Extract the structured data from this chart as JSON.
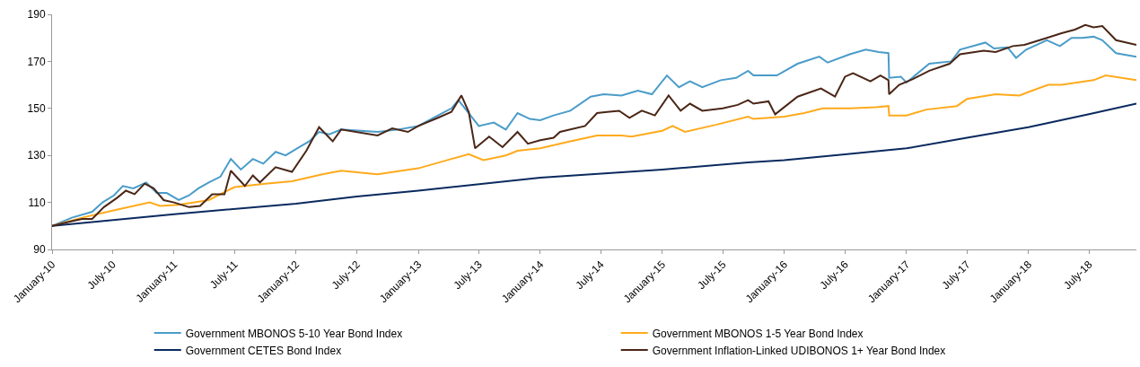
{
  "chart_data": {
    "type": "line",
    "ylim": [
      90,
      190
    ],
    "yticks": [
      90,
      110,
      130,
      150,
      170,
      190
    ],
    "xlim": [
      "2010-01-01",
      "2018-11-20"
    ],
    "xticks": [
      {
        "value": "2010-01-01",
        "label": "January-10"
      },
      {
        "value": "2010-07-01",
        "label": "July-10"
      },
      {
        "value": "2011-01-01",
        "label": "January-11"
      },
      {
        "value": "2011-07-01",
        "label": "July-11"
      },
      {
        "value": "2012-01-01",
        "label": "January-12"
      },
      {
        "value": "2012-07-01",
        "label": "July-12"
      },
      {
        "value": "2013-01-01",
        "label": "January-13"
      },
      {
        "value": "2013-07-01",
        "label": "July-13"
      },
      {
        "value": "2014-01-01",
        "label": "January-14"
      },
      {
        "value": "2014-07-01",
        "label": "July-14"
      },
      {
        "value": "2015-01-01",
        "label": "January-15"
      },
      {
        "value": "2015-07-01",
        "label": "July-15"
      },
      {
        "value": "2016-01-01",
        "label": "January-16"
      },
      {
        "value": "2016-07-01",
        "label": "July-16"
      },
      {
        "value": "2017-01-01",
        "label": "January-17"
      },
      {
        "value": "2017-07-01",
        "label": "July-17"
      },
      {
        "value": "2018-01-01",
        "label": "January-18"
      },
      {
        "value": "2018-07-01",
        "label": "July-18"
      }
    ],
    "grid": false,
    "legend": "bottom",
    "marker": "none",
    "line_style": "solid",
    "series": [
      {
        "name": "Government MBONOS 5-10 Year Bond Index",
        "color": "#4a9cc9",
        "x": [
          "2010-01-01",
          "2010-03-01",
          "2010-05-01",
          "2010-06-01",
          "2010-07-05",
          "2010-08-01",
          "2010-09-01",
          "2010-10-10",
          "2010-11-10",
          "2010-12-10",
          "2011-01-15",
          "2011-02-15",
          "2011-03-15",
          "2011-04-15",
          "2011-05-20",
          "2011-06-20",
          "2011-07-20",
          "2011-08-25",
          "2011-09-25",
          "2011-11-01",
          "2011-12-01",
          "2012-01-10",
          "2012-02-10",
          "2012-03-10",
          "2012-04-10",
          "2012-05-15",
          "2012-09-01",
          "2012-11-01",
          "2013-01-01",
          "2013-03-01",
          "2013-04-10",
          "2013-05-01",
          "2013-06-01",
          "2013-07-01",
          "2013-08-15",
          "2013-09-20",
          "2013-10-25",
          "2013-12-01",
          "2014-01-01",
          "2014-02-10",
          "2014-04-01",
          "2014-06-01",
          "2014-07-10",
          "2014-09-01",
          "2014-10-20",
          "2014-12-01",
          "2015-01-15",
          "2015-02-20",
          "2015-03-25",
          "2015-05-01",
          "2015-06-25",
          "2015-08-10",
          "2015-09-15",
          "2015-10-01",
          "2015-12-10",
          "2016-02-10",
          "2016-04-15",
          "2016-05-10",
          "2016-07-15",
          "2016-09-01",
          "2016-10-10",
          "2016-11-08",
          "2016-11-10",
          "2016-12-15",
          "2017-01-01",
          "2017-03-10",
          "2017-05-15",
          "2017-06-10",
          "2017-08-25",
          "2017-09-20",
          "2017-10-30",
          "2017-11-25",
          "2017-12-25",
          "2018-02-25",
          "2018-04-05",
          "2018-05-10",
          "2018-06-10",
          "2018-07-15",
          "2018-08-10",
          "2018-09-20",
          "2018-11-20"
        ],
        "values": [
          100,
          103.5,
          106,
          110,
          113,
          117,
          116,
          118.5,
          114,
          114,
          111,
          113,
          116,
          118.5,
          121,
          128.5,
          124,
          128.5,
          126.5,
          131.5,
          130,
          133.5,
          136,
          140,
          139,
          141,
          140,
          141,
          142.5,
          147,
          150,
          153.5,
          148,
          142.5,
          144,
          141,
          148,
          145.5,
          145,
          147,
          149,
          155,
          156,
          155.5,
          157.5,
          156,
          164,
          159,
          161.5,
          159,
          162,
          163,
          166,
          164,
          164,
          169,
          172,
          169.5,
          173,
          175,
          174,
          173.5,
          163,
          163.5,
          161,
          169,
          170,
          175,
          178,
          175.5,
          176,
          171.5,
          175,
          179,
          176.5,
          180,
          180,
          180.5,
          179,
          173.5,
          172
        ]
      },
      {
        "name": "Government MBONOS 1-5 Year Bond Index",
        "color": "#ffaa1c",
        "x": [
          "2010-01-01",
          "2010-04-01",
          "2010-07-01",
          "2010-10-20",
          "2010-11-20",
          "2011-01-15",
          "2011-04-15",
          "2011-07-01",
          "2011-10-01",
          "2011-12-20",
          "2012-03-20",
          "2012-05-15",
          "2012-09-01",
          "2013-01-01",
          "2013-04-10",
          "2013-06-01",
          "2013-07-15",
          "2013-09-20",
          "2013-10-25",
          "2014-01-01",
          "2014-04-01",
          "2014-06-20",
          "2014-09-01",
          "2014-10-01",
          "2015-01-01",
          "2015-02-01",
          "2015-03-10",
          "2015-06-10",
          "2015-09-15",
          "2015-10-01",
          "2016-01-01",
          "2016-03-01",
          "2016-04-25",
          "2016-07-15",
          "2016-10-01",
          "2016-11-08",
          "2016-11-10",
          "2017-01-01",
          "2017-03-01",
          "2017-06-01",
          "2017-07-01",
          "2017-09-25",
          "2017-12-05",
          "2018-01-01",
          "2018-03-01",
          "2018-04-10",
          "2018-07-15",
          "2018-08-20",
          "2018-11-20"
        ],
        "values": [
          100,
          103.5,
          106.5,
          110,
          108.5,
          109,
          111,
          116.5,
          118,
          119,
          122,
          123.5,
          122,
          124.5,
          128.5,
          130.5,
          128,
          130,
          132,
          133,
          136,
          138.5,
          138.5,
          138,
          140.5,
          142.5,
          140,
          143,
          146.5,
          145.5,
          146.5,
          148,
          150,
          150,
          150.5,
          151,
          147,
          147,
          149.5,
          151,
          154,
          156,
          155.5,
          157,
          160,
          160,
          162,
          164,
          162
        ]
      },
      {
        "name": "Government CETES Bond Index",
        "color": "#0a2a5e",
        "x": [
          "2010-01-01",
          "2011-01-01",
          "2012-01-01",
          "2012-07-01",
          "2013-01-01",
          "2014-01-01",
          "2015-01-01",
          "2015-09-15",
          "2016-01-01",
          "2016-07-01",
          "2017-01-01",
          "2017-07-01",
          "2018-01-01",
          "2018-07-01",
          "2018-11-20"
        ],
        "values": [
          100,
          105,
          109.5,
          112.5,
          115,
          120.5,
          124,
          127,
          128,
          130.5,
          133,
          137.5,
          142,
          147.5,
          152
        ]
      },
      {
        "name": "Government Inflation-Linked UDIBONOS 1+ Year Bond Index",
        "color": "#4a2616",
        "x": [
          "2010-01-01",
          "2010-03-01",
          "2010-04-01",
          "2010-05-01",
          "2010-06-05",
          "2010-07-15",
          "2010-08-10",
          "2010-09-05",
          "2010-10-05",
          "2010-11-01",
          "2010-12-01",
          "2011-01-01",
          "2011-02-15",
          "2011-03-20",
          "2011-04-25",
          "2011-06-01",
          "2011-06-20",
          "2011-08-01",
          "2011-08-25",
          "2011-09-15",
          "2011-11-01",
          "2011-12-20",
          "2012-02-01",
          "2012-03-10",
          "2012-04-20",
          "2012-05-15",
          "2012-09-01",
          "2012-10-15",
          "2012-12-01",
          "2013-01-01",
          "2013-03-01",
          "2013-04-10",
          "2013-05-10",
          "2013-06-01",
          "2013-06-20",
          "2013-08-01",
          "2013-09-10",
          "2013-10-25",
          "2013-11-25",
          "2014-01-01",
          "2014-02-10",
          "2014-03-01",
          "2014-05-15",
          "2014-06-20",
          "2014-07-20",
          "2014-08-25",
          "2014-09-25",
          "2014-11-01",
          "2014-12-10",
          "2015-01-20",
          "2015-02-25",
          "2015-03-25",
          "2015-05-01",
          "2015-07-01",
          "2015-08-15",
          "2015-09-15",
          "2015-10-01",
          "2015-11-15",
          "2015-12-05",
          "2016-02-10",
          "2016-04-20",
          "2016-06-01",
          "2016-07-01",
          "2016-07-25",
          "2016-09-15",
          "2016-10-15",
          "2016-11-08",
          "2016-11-10",
          "2016-12-10",
          "2017-01-20",
          "2017-03-10",
          "2017-05-10",
          "2017-06-10",
          "2017-08-20",
          "2017-09-25",
          "2017-11-15",
          "2017-12-20",
          "2018-02-25",
          "2018-04-10",
          "2018-05-20",
          "2018-06-20",
          "2018-07-15",
          "2018-08-10",
          "2018-09-20",
          "2018-11-20"
        ],
        "values": [
          100,
          102,
          103,
          103,
          108,
          112,
          115,
          113.5,
          118,
          116,
          111,
          110,
          108,
          108.5,
          113.5,
          113.5,
          123.5,
          117,
          121.5,
          118.5,
          125,
          123,
          132,
          142,
          136,
          141,
          138.5,
          141.5,
          140,
          142.5,
          146,
          148.5,
          155.5,
          148.5,
          133,
          138,
          133.5,
          140,
          135,
          136.5,
          137.5,
          140,
          142.5,
          148,
          148.5,
          149,
          146,
          149,
          147,
          155.5,
          149,
          152,
          149,
          150,
          151.5,
          153.5,
          152,
          153,
          147.5,
          155,
          158.5,
          155,
          163.5,
          165,
          161.5,
          164,
          162,
          156,
          160,
          162.5,
          166,
          169,
          173,
          174.5,
          174,
          176.5,
          177,
          180,
          182,
          183.5,
          185.5,
          184.5,
          185,
          179,
          177
        ]
      }
    ]
  }
}
